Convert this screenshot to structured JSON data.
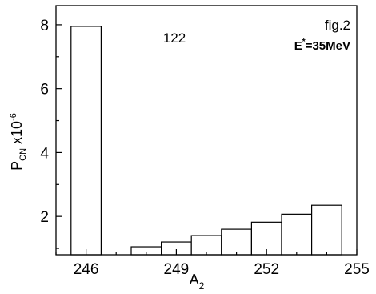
{
  "chart_data": {
    "type": "bar",
    "title": "",
    "xlabel": "A",
    "xlabel_sub": "2",
    "ylabel": "P",
    "ylabel_sub": "CN",
    "ylabel_suffix": " x10",
    "ylabel_sup": "-6",
    "xlim": [
      245,
      255
    ],
    "ylim": [
      0.8,
      8.6
    ],
    "xticks": [
      246,
      249,
      252,
      255
    ],
    "yticks": [
      2,
      4,
      6,
      8
    ],
    "bar_width": 1,
    "bars": [
      {
        "x": 246,
        "value": 7.95
      },
      {
        "x": 248,
        "value": 1.05
      },
      {
        "x": 249,
        "value": 1.2
      },
      {
        "x": 250,
        "value": 1.4
      },
      {
        "x": 251,
        "value": 1.6
      },
      {
        "x": 252,
        "value": 1.82
      },
      {
        "x": 253,
        "value": 2.07
      },
      {
        "x": 254,
        "value": 2.35
      }
    ],
    "annotations": {
      "z_label": "122",
      "fig_label": "fig.2",
      "energy_prefix": "E",
      "energy_sup": "*",
      "energy_value": "=35MeV"
    },
    "grid": false,
    "legend": "none"
  }
}
